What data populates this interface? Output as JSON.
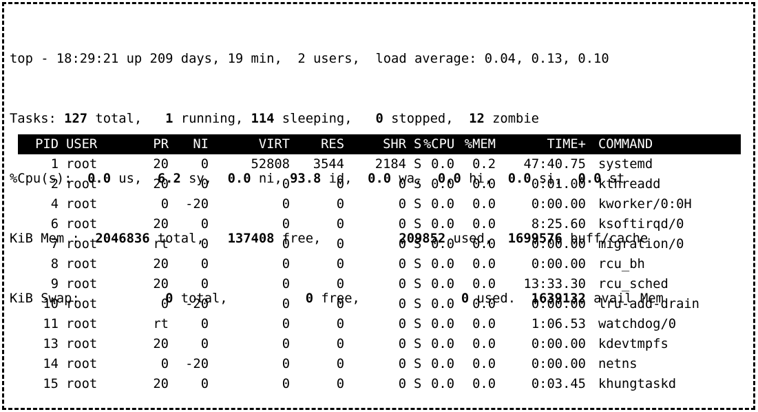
{
  "app": "top",
  "colors": {
    "background": "#ffffff",
    "text": "#000000",
    "header_bar_bg": "#000000",
    "header_bar_text": "#ffffff",
    "border": "#000000"
  },
  "summary": {
    "lines": [
      [
        {
          "t": "top - 18:29:21 up 209 days, 19 min,  2 users,  load average: 0.04, 0.13, 0.10"
        }
      ],
      [
        {
          "t": "Tasks: "
        },
        {
          "t": "127",
          "b": true
        },
        {
          "t": " total,   "
        },
        {
          "t": "1",
          "b": true
        },
        {
          "t": " running, "
        },
        {
          "t": "114",
          "b": true
        },
        {
          "t": " sleeping,   "
        },
        {
          "t": "0",
          "b": true
        },
        {
          "t": " stopped,  "
        },
        {
          "t": "12",
          "b": true
        },
        {
          "t": " zombie"
        }
      ],
      [
        {
          "t": "%Cpu(s):  "
        },
        {
          "t": "0.0",
          "b": true
        },
        {
          "t": " us,  "
        },
        {
          "t": "6.2",
          "b": true
        },
        {
          "t": " sy,  "
        },
        {
          "t": "0.0",
          "b": true
        },
        {
          "t": " ni, "
        },
        {
          "t": "93.8",
          "b": true
        },
        {
          "t": " id,  "
        },
        {
          "t": "0.0",
          "b": true
        },
        {
          "t": " wa,  "
        },
        {
          "t": "0.0",
          "b": true
        },
        {
          "t": " hi,  "
        },
        {
          "t": "0.0",
          "b": true
        },
        {
          "t": " si,  "
        },
        {
          "t": "0.0",
          "b": true
        },
        {
          "t": " st"
        }
      ],
      [
        {
          "t": "KiB Mem :  "
        },
        {
          "t": "2046836",
          "b": true
        },
        {
          "t": " total,   "
        },
        {
          "t": "137408",
          "b": true
        },
        {
          "t": " free,          "
        },
        {
          "t": "209852",
          "b": true
        },
        {
          "t": " used,  "
        },
        {
          "t": "1699576",
          "b": true
        },
        {
          "t": " buff/cache"
        }
      ],
      [
        {
          "t": "KiB Swap:           "
        },
        {
          "t": "0",
          "b": true
        },
        {
          "t": " total,          "
        },
        {
          "t": "0",
          "b": true
        },
        {
          "t": " free,             "
        },
        {
          "t": "0",
          "b": true
        },
        {
          "t": " used.  "
        },
        {
          "t": "1639132",
          "b": true
        },
        {
          "t": " avail Mem"
        }
      ]
    ]
  },
  "table": {
    "headers": [
      "PID",
      "USER",
      "PR",
      "NI",
      "VIRT",
      "RES",
      "SHR",
      "S",
      "%CPU",
      "%MEM",
      "TIME+",
      "COMMAND"
    ],
    "rows": [
      {
        "pid": "1",
        "user": "root",
        "pr": "20",
        "ni": "0",
        "virt": "52808",
        "res": "3544",
        "shr": "2184",
        "s": "S",
        "cpu": "0.0",
        "mem": "0.2",
        "time": "47:40.75",
        "cmd": "systemd"
      },
      {
        "pid": "2",
        "user": "root",
        "pr": "20",
        "ni": "0",
        "virt": "0",
        "res": "0",
        "shr": "0",
        "s": "S",
        "cpu": "0.0",
        "mem": "0.0",
        "time": "0:01.00",
        "cmd": "kthreadd"
      },
      {
        "pid": "4",
        "user": "root",
        "pr": "0",
        "ni": "-20",
        "virt": "0",
        "res": "0",
        "shr": "0",
        "s": "S",
        "cpu": "0.0",
        "mem": "0.0",
        "time": "0:00.00",
        "cmd": "kworker/0:0H"
      },
      {
        "pid": "6",
        "user": "root",
        "pr": "20",
        "ni": "0",
        "virt": "0",
        "res": "0",
        "shr": "0",
        "s": "S",
        "cpu": "0.0",
        "mem": "0.0",
        "time": "8:25.60",
        "cmd": "ksoftirqd/0"
      },
      {
        "pid": "7",
        "user": "root",
        "pr": "rt",
        "ni": "0",
        "virt": "0",
        "res": "0",
        "shr": "0",
        "s": "S",
        "cpu": "0.0",
        "mem": "0.0",
        "time": "0:00.00",
        "cmd": "migration/0"
      },
      {
        "pid": "8",
        "user": "root",
        "pr": "20",
        "ni": "0",
        "virt": "0",
        "res": "0",
        "shr": "0",
        "s": "S",
        "cpu": "0.0",
        "mem": "0.0",
        "time": "0:00.00",
        "cmd": "rcu_bh"
      },
      {
        "pid": "9",
        "user": "root",
        "pr": "20",
        "ni": "0",
        "virt": "0",
        "res": "0",
        "shr": "0",
        "s": "S",
        "cpu": "0.0",
        "mem": "0.0",
        "time": "13:33.30",
        "cmd": "rcu_sched"
      },
      {
        "pid": "10",
        "user": "root",
        "pr": "0",
        "ni": "-20",
        "virt": "0",
        "res": "0",
        "shr": "0",
        "s": "S",
        "cpu": "0.0",
        "mem": "0.0",
        "time": "0:00.00",
        "cmd": "lru-add-drain"
      },
      {
        "pid": "11",
        "user": "root",
        "pr": "rt",
        "ni": "0",
        "virt": "0",
        "res": "0",
        "shr": "0",
        "s": "S",
        "cpu": "0.0",
        "mem": "0.0",
        "time": "1:06.53",
        "cmd": "watchdog/0"
      },
      {
        "pid": "13",
        "user": "root",
        "pr": "20",
        "ni": "0",
        "virt": "0",
        "res": "0",
        "shr": "0",
        "s": "S",
        "cpu": "0.0",
        "mem": "0.0",
        "time": "0:00.00",
        "cmd": "kdevtmpfs"
      },
      {
        "pid": "14",
        "user": "root",
        "pr": "0",
        "ni": "-20",
        "virt": "0",
        "res": "0",
        "shr": "0",
        "s": "S",
        "cpu": "0.0",
        "mem": "0.0",
        "time": "0:00.00",
        "cmd": "netns"
      },
      {
        "pid": "15",
        "user": "root",
        "pr": "20",
        "ni": "0",
        "virt": "0",
        "res": "0",
        "shr": "0",
        "s": "S",
        "cpu": "0.0",
        "mem": "0.0",
        "time": "0:03.45",
        "cmd": "khungtaskd"
      }
    ]
  }
}
